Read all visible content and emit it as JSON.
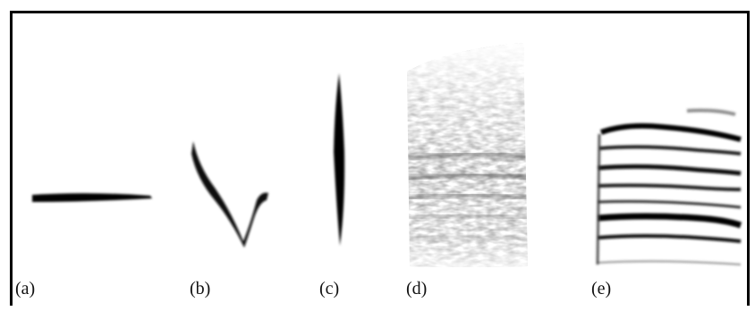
{
  "figure": {
    "panels": [
      {
        "id": "a",
        "label": "(a)",
        "shape": "flat-tone"
      },
      {
        "id": "b",
        "label": "(b)",
        "shape": "v-shaped-sweep"
      },
      {
        "id": "c",
        "label": "(c)",
        "shape": "vertical-click"
      },
      {
        "id": "d",
        "label": "(d)",
        "shape": "broadband-noise"
      },
      {
        "id": "e",
        "label": "(e)",
        "shape": "harmonic-stack"
      }
    ],
    "colors": {
      "ink": "#000000",
      "background": "#ffffff",
      "noise": "#6e6e6e"
    }
  }
}
